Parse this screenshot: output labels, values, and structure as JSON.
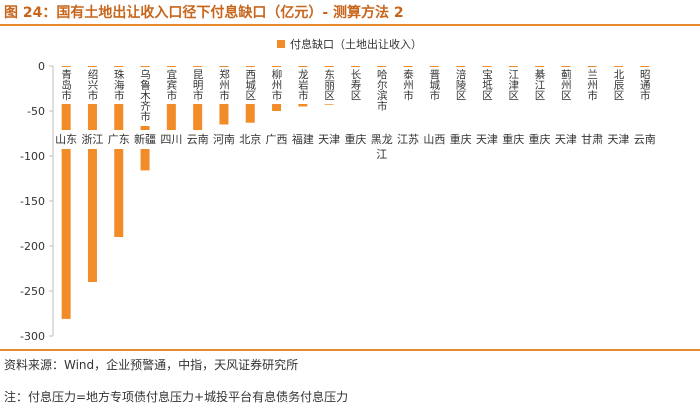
{
  "header": {
    "title": "图 24：国有土地出让收入口径下付息缺口（亿元）- 测算方法 2"
  },
  "footer": {
    "source": "资料来源：Wind，企业预警通，中指，天风证券研究所",
    "note": "注：付息压力=地方专项债付息压力+城投平台有息债务付息压力"
  },
  "chart_data": {
    "type": "bar",
    "legend": "付息缺口（土地出让收入）",
    "legend_position": "top-center",
    "bar_color": "#f28c28",
    "ylim": [
      -300,
      0
    ],
    "yticks": [
      0,
      -50,
      -100,
      -150,
      -200,
      -250,
      -300
    ],
    "grid": false,
    "categories": [
      "青岛市",
      "绍兴市",
      "珠海市",
      "乌鲁木齐市",
      "宜宾市",
      "昆明市",
      "郑州市",
      "西城区",
      "柳州市",
      "龙岩市",
      "东丽区",
      "长寿区",
      "哈尔滨市",
      "泰州市",
      "晋城市",
      "涪陵区",
      "宝坻区",
      "江津区",
      "綦江区",
      "蓟州区",
      "兰州市",
      "北辰区",
      "昭通市"
    ],
    "provinces": [
      "山东",
      "浙江",
      "广东",
      "新疆",
      "四川",
      "云南",
      "河南",
      "北京",
      "广西",
      "福建",
      "天津",
      "重庆",
      "黑龙江",
      "江苏",
      "山西",
      "重庆",
      "天津",
      "重庆",
      "重庆",
      "天津",
      "甘肃",
      "天津",
      "云南"
    ],
    "values": [
      -281,
      -240,
      -190,
      -116,
      -87,
      -73,
      -65,
      -63,
      -50,
      -45,
      -43,
      -41,
      -40,
      -38,
      -37,
      -36,
      -35,
      -34,
      -33,
      -32,
      -31,
      -30,
      -29
    ]
  }
}
